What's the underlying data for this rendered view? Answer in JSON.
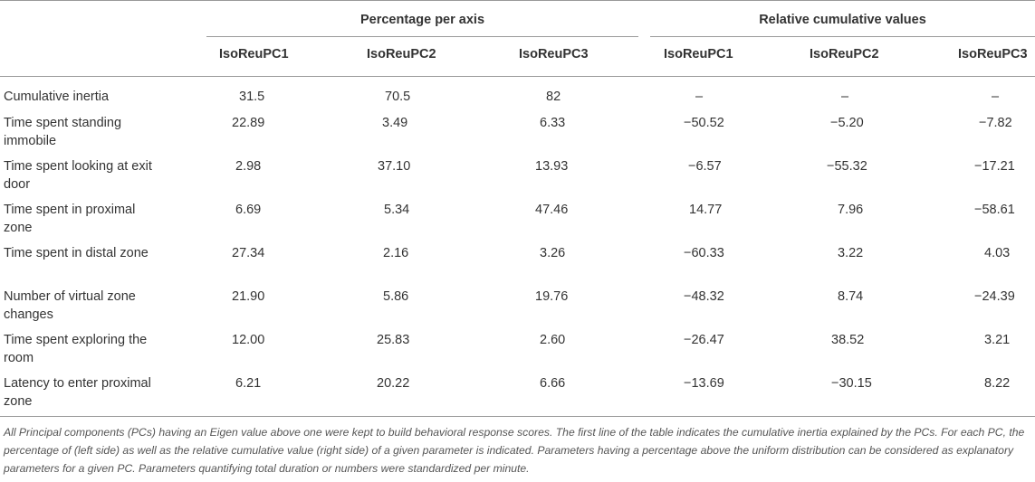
{
  "table": {
    "group_headers": [
      "Percentage per axis",
      "Relative cumulative values"
    ],
    "column_headers": [
      "IsoReuPC1",
      "IsoReuPC2",
      "IsoReuPC3",
      "IsoReuPC1",
      "IsoReuPC2",
      "IsoReuPC3"
    ],
    "rows": [
      {
        "label": "Cumulative inertia",
        "values": [
          "31.5",
          "70.5",
          "82",
          "–",
          "–",
          "–"
        ]
      },
      {
        "label": "Time spent standing immobile",
        "values": [
          "22.89",
          "3.49",
          "6.33",
          "−50.52",
          "−5.20",
          "−7.82"
        ]
      },
      {
        "label": "Time spent looking at exit door",
        "values": [
          "2.98",
          "37.10",
          "13.93",
          "−6.57",
          "−55.32",
          "−17.21"
        ]
      },
      {
        "label": "Time spent in proximal zone",
        "values": [
          "6.69",
          "5.34",
          "47.46",
          "14.77",
          "7.96",
          "−58.61"
        ]
      },
      {
        "label": "Time spent in distal zone",
        "values": [
          "27.34",
          "2.16",
          "3.26",
          "−60.33",
          "3.22",
          "4.03"
        ]
      },
      {
        "label": "Number of virtual zone changes",
        "values": [
          "21.90",
          "5.86",
          "19.76",
          "−48.32",
          "8.74",
          "−24.39"
        ]
      },
      {
        "label": "Time spent exploring the room",
        "values": [
          "12.00",
          "25.83",
          "2.60",
          "−26.47",
          "38.52",
          "3.21"
        ]
      },
      {
        "label": "Latency to enter proximal zone",
        "values": [
          "6.21",
          "20.22",
          "6.66",
          "−13.69",
          "−30.15",
          "8.22"
        ]
      }
    ]
  },
  "footnote": "All Principal components (PCs) having an Eigen value above one were kept to build behavioral response scores. The first line of the table indicates the cumulative inertia explained by the PCs. For each PC, the percentage of (left side) as well as the relative cumulative value (right side) of a given parameter is indicated. Parameters having a percentage above the uniform distribution can be considered as explanatory parameters for a given PC. Parameters quantifying total duration or numbers were standardized per minute."
}
